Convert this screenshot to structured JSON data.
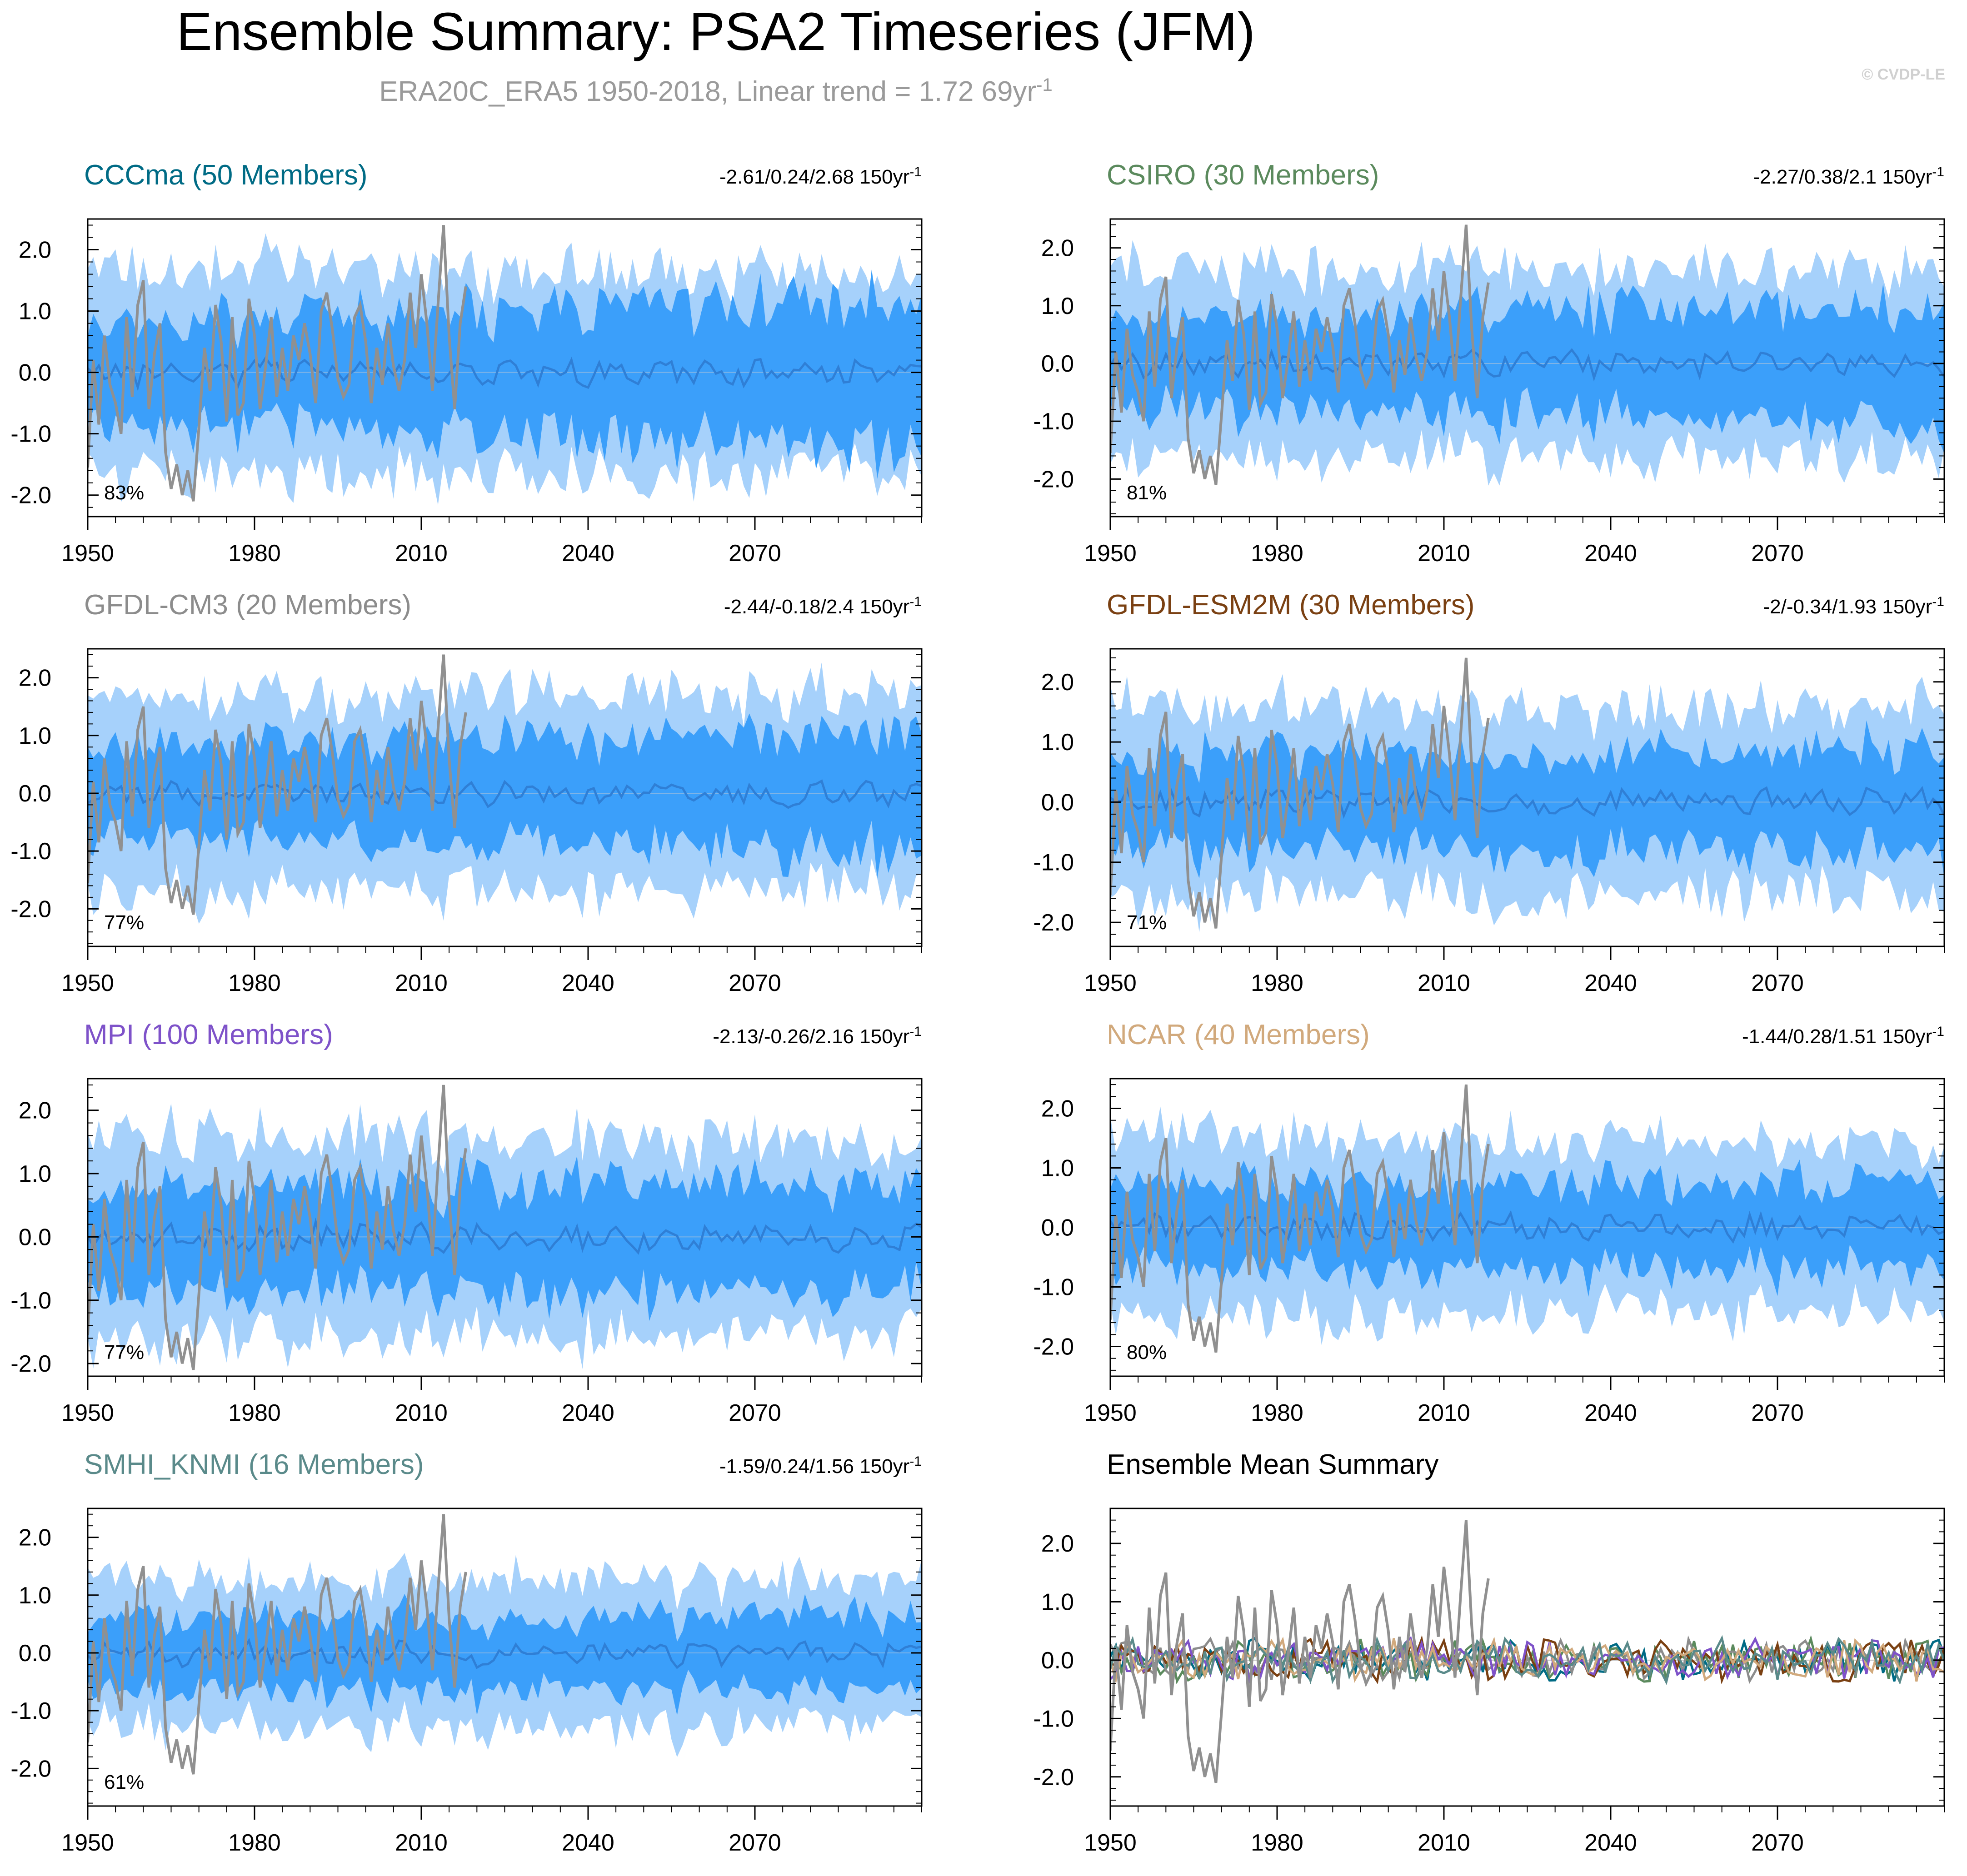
{
  "title": "Ensemble Summary: PSA2 Timeseries (JFM)",
  "subtitle": "ERA20C_ERA5 1950-2018, Linear trend = 1.72 69yr",
  "subtitle_sup": "-1",
  "watermark": "© CVDP-LE",
  "colors": {
    "outer_band": "#a6d1fb",
    "inner_band": "#3b9ffa",
    "mean_line": "#2f7fd6",
    "obs_line": "#909090"
  },
  "chart_data": [
    {
      "name": "CCCma",
      "title": "CCCma (50 Members)",
      "title_color": "#006b85",
      "trend": "-2.61/0.24/2.68 150yr",
      "trend_sup": "-1",
      "percent": "83%",
      "type": "area",
      "ylim": [
        -2.35,
        2.5
      ],
      "ymin_data": -2.35,
      "ymax_data": 2.5,
      "yticks": [
        "2.0",
        "1.0",
        "0.0",
        "-1.0",
        "-2.0"
      ],
      "xticks": [
        "1950",
        "1980",
        "2010",
        "2040",
        "2070"
      ],
      "xlim": [
        1950,
        2100
      ],
      "band_seed": 3,
      "mean_seed": 11,
      "inner_amp": [
        0.95,
        1.45
      ],
      "outer_amp": [
        1.75,
        1.65
      ]
    },
    {
      "name": "CSIRO",
      "title": "CSIRO (30 Members)",
      "title_color": "#5b8a5d",
      "trend": "-2.27/0.38/2.1 150yr",
      "trend_sup": "-1",
      "percent": "81%",
      "type": "area",
      "ylim": [
        -2.65,
        2.5
      ],
      "yticks": [
        "2.0",
        "1.0",
        "0.0",
        "-1.0",
        "-2.0"
      ],
      "xticks": [
        "1950",
        "1980",
        "2010",
        "2040",
        "2070"
      ],
      "xlim": [
        1950,
        2100
      ],
      "band_seed": 5,
      "mean_seed": 13,
      "inner_amp": [
        0.85,
        1.25
      ],
      "outer_amp": [
        1.7,
        1.6
      ]
    },
    {
      "name": "GFDL-CM3",
      "title": "GFDL-CM3 (20 Members)",
      "title_color": "#8c8c8c",
      "trend": "-2.44/-0.18/2.4 150yr",
      "trend_sup": "-1",
      "percent": "77%",
      "type": "area",
      "ylim": [
        -2.65,
        2.5
      ],
      "yticks": [
        "2.0",
        "1.0",
        "0.0",
        "-1.0",
        "-2.0"
      ],
      "xticks": [
        "1950",
        "1980",
        "2010",
        "2040",
        "2070"
      ],
      "xlim": [
        1950,
        2100
      ],
      "band_seed": 7,
      "mean_seed": 17,
      "inner_amp": [
        0.9,
        1.2
      ],
      "outer_amp": [
        1.75,
        1.7
      ]
    },
    {
      "name": "GFDL-ESM2M",
      "title": "GFDL-ESM2M (30 Members)",
      "title_color": "#7a4012",
      "trend": "-2/-0.34/1.93 150yr",
      "trend_sup": "-1",
      "percent": "71%",
      "type": "area",
      "ylim": [
        -2.4,
        2.55
      ],
      "yticks": [
        "2.0",
        "1.0",
        "0.0",
        "-1.0",
        "-2.0"
      ],
      "xticks": [
        "1950",
        "1980",
        "2010",
        "2040",
        "2070"
      ],
      "xlim": [
        1950,
        2100
      ],
      "band_seed": 9,
      "mean_seed": 19,
      "inner_amp": [
        0.9,
        1.0
      ],
      "outer_amp": [
        1.65,
        1.55
      ]
    },
    {
      "name": "MPI",
      "title": "MPI (100 Members)",
      "title_color": "#7e52c9",
      "trend": "-2.13/-0.26/2.16 150yr",
      "trend_sup": "-1",
      "percent": "77%",
      "type": "area",
      "ylim": [
        -2.2,
        2.5
      ],
      "yticks": [
        "2.0",
        "1.0",
        "0.0",
        "-1.0",
        "-2.0"
      ],
      "xticks": [
        "1950",
        "1980",
        "2010",
        "2040",
        "2070"
      ],
      "xlim": [
        1950,
        2100
      ],
      "band_seed": 21,
      "mean_seed": 23,
      "inner_amp": [
        0.95,
        1.0
      ],
      "outer_amp": [
        1.7,
        1.5
      ]
    },
    {
      "name": "NCAR",
      "title": "NCAR (40 Members)",
      "title_color": "#d1a97c",
      "trend": "-1.44/0.28/1.51 150yr",
      "trend_sup": "-1",
      "percent": "80%",
      "type": "area",
      "ylim": [
        -2.5,
        2.5
      ],
      "yticks": [
        "2.0",
        "1.0",
        "0.0",
        "-1.0",
        "-2.0"
      ],
      "xticks": [
        "1950",
        "1980",
        "2010",
        "2040",
        "2070"
      ],
      "xlim": [
        1950,
        2100
      ],
      "band_seed": 25,
      "mean_seed": 27,
      "inner_amp": [
        0.85,
        0.85
      ],
      "outer_amp": [
        1.6,
        1.35
      ]
    },
    {
      "name": "SMHI_KNMI",
      "title": "SMHI_KNMI (16 Members)",
      "title_color": "#5a8a8a",
      "trend": "-1.59/0.24/1.56 150yr",
      "trend_sup": "-1",
      "percent": "61%",
      "type": "area",
      "ylim": [
        -2.65,
        2.5
      ],
      "yticks": [
        "2.0",
        "1.0",
        "0.0",
        "-1.0",
        "-2.0"
      ],
      "xticks": [
        "1950",
        "1980",
        "2010",
        "2040",
        "2070"
      ],
      "xlim": [
        1950,
        2100
      ],
      "band_seed": 29,
      "mean_seed": 31,
      "inner_amp": [
        0.7,
        0.75
      ],
      "outer_amp": [
        1.3,
        1.3
      ]
    },
    {
      "name": "Ensemble Mean Summary",
      "title": "Ensemble Mean Summary",
      "title_color": "#000000",
      "trend": "",
      "trend_sup": "",
      "percent": "",
      "type": "line",
      "ylim": [
        -2.5,
        2.6
      ],
      "yticks": [
        "2.0",
        "1.0",
        "0.0",
        "-1.0",
        "-2.0"
      ],
      "xticks": [
        "1950",
        "1980",
        "2010",
        "2040",
        "2070"
      ],
      "xlim": [
        1950,
        2100
      ],
      "series_colors": [
        "#006b85",
        "#5b8a5d",
        "#8c8c8c",
        "#7a4012",
        "#7e52c9",
        "#d1a97c",
        "#5a8a8a"
      ]
    }
  ],
  "obs_series": {
    "name": "ERA20C_ERA5",
    "x_start": 1950,
    "values": [
      -1.55,
      0.2,
      -0.85,
      0.6,
      -0.2,
      -0.5,
      -1.0,
      0.9,
      -0.4,
      1.1,
      1.5,
      -0.6,
      0.3,
      0.8,
      -1.3,
      -1.9,
      -1.5,
      -2.0,
      -1.6,
      -2.1,
      -0.9,
      0.4,
      -0.3,
      1.1,
      0.5,
      -0.8,
      0.9,
      -0.7,
      -0.5,
      1.2,
      0.6,
      -0.6,
      0.1,
      0.9,
      -0.4,
      0.4,
      -0.3,
      0.6,
      0.2,
      0.8,
      0.3,
      -0.5,
      1.0,
      1.3,
      0.7,
      -0.1,
      -0.4,
      -0.2,
      0.9,
      1.1,
      0.5,
      -0.5,
      0.4,
      -0.2,
      0.8,
      0.1,
      -0.3,
      0.2,
      1.3,
      0.4,
      1.6,
      0.8,
      -0.3,
      1.1,
      2.4,
      0.6,
      -0.6,
      0.8,
      1.4
    ]
  }
}
